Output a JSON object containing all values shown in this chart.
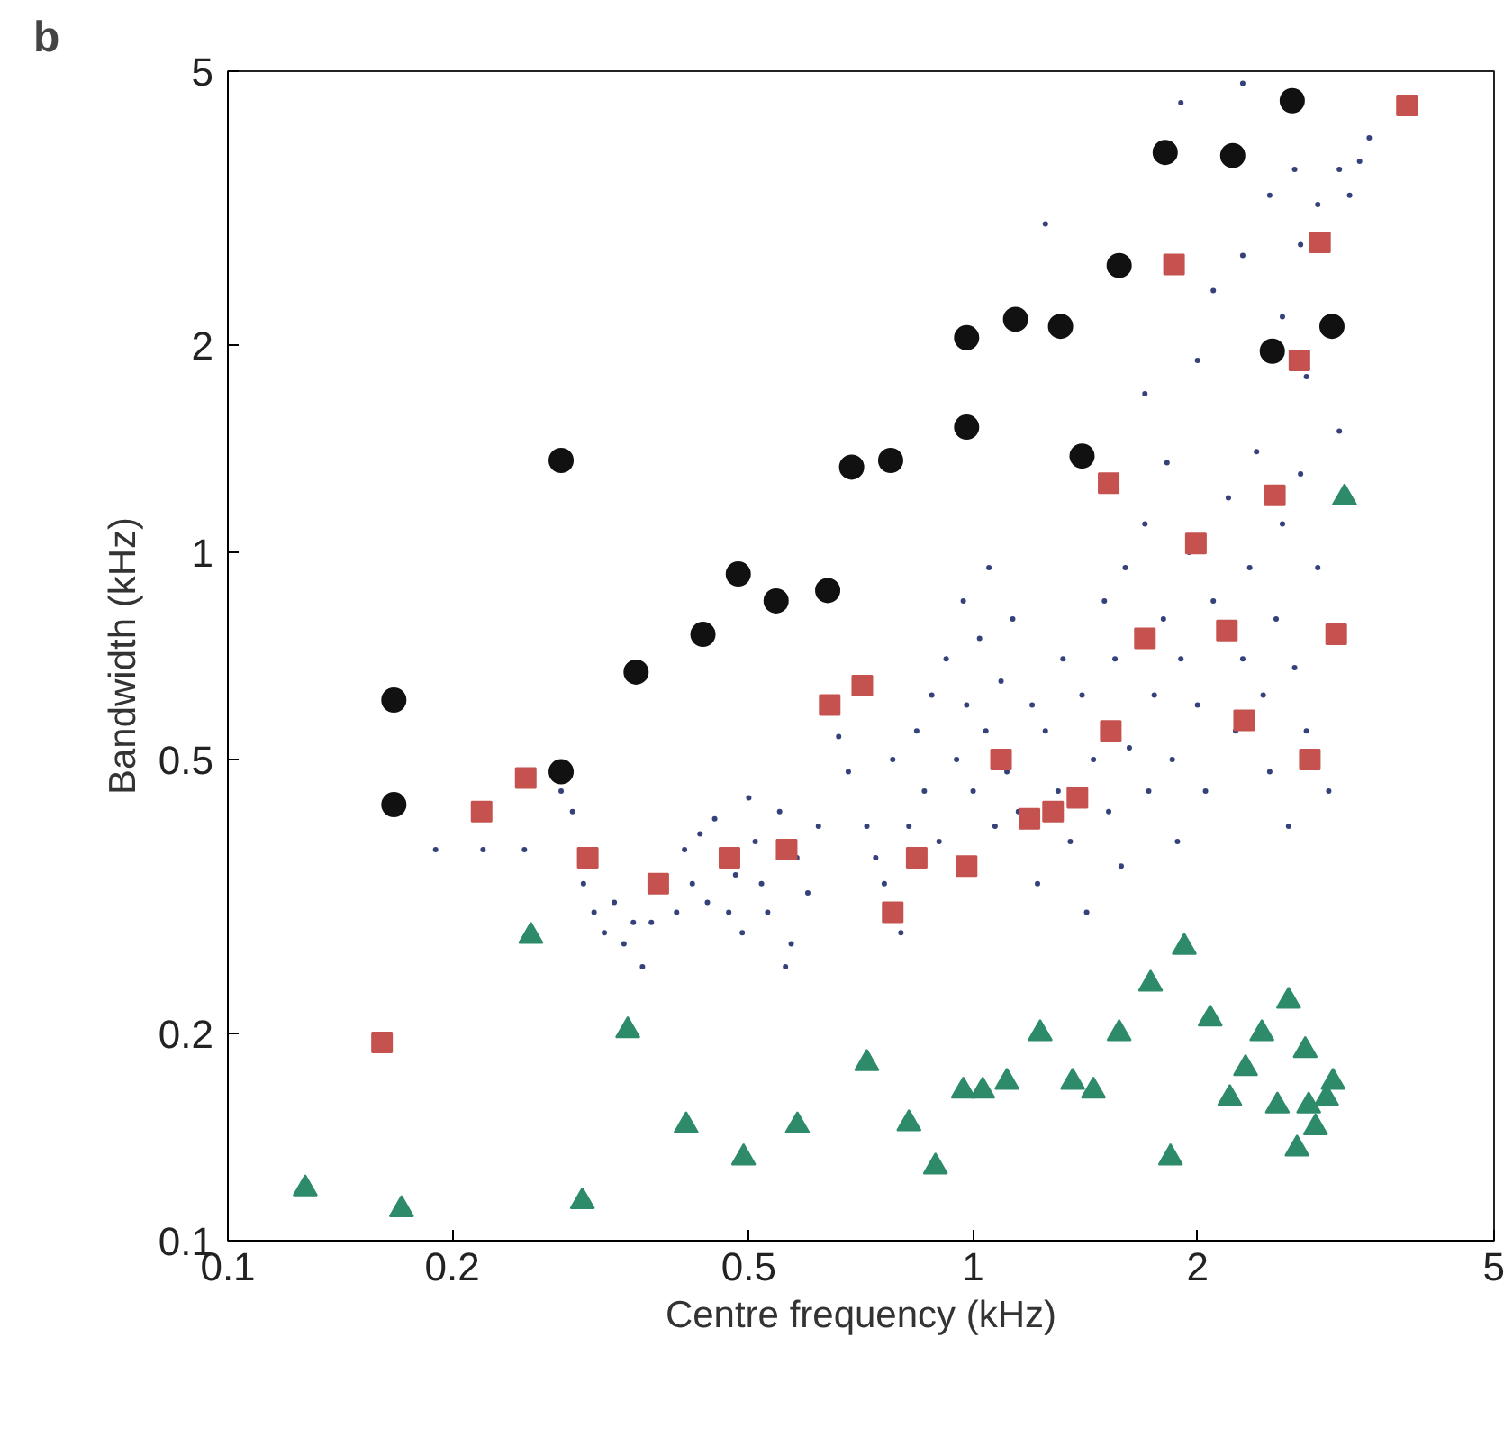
{
  "chart_data": {
    "type": "scatter",
    "title": "b",
    "xlabel": "Centre frequency (kHz)",
    "ylabel": "Bandwidth (kHz)",
    "log": "xy",
    "xlim": [
      0.1,
      5
    ],
    "ylim": [
      0.1,
      5
    ],
    "xticks": [
      0.1,
      0.2,
      0.5,
      1,
      2,
      5
    ],
    "yticks": [
      0.1,
      0.2,
      0.5,
      1,
      2,
      5
    ],
    "grid": false,
    "series": [
      {
        "color": "#34417a",
        "marker": "dot",
        "x": [
          0.19,
          0.22,
          0.25,
          0.28,
          0.29,
          0.3,
          0.31,
          0.32,
          0.33,
          0.34,
          0.35,
          0.36,
          0.37,
          0.4,
          0.41,
          0.42,
          0.43,
          0.44,
          0.45,
          0.47,
          0.48,
          0.49,
          0.5,
          0.51,
          0.52,
          0.53,
          0.55,
          0.57,
          0.58,
          0.6,
          0.62,
          0.56,
          0.66,
          0.68,
          0.72,
          0.74,
          0.76,
          0.78,
          0.8,
          0.82,
          0.84,
          0.86,
          0.88,
          0.9,
          0.92,
          0.95,
          0.97,
          0.98,
          1.0,
          1.02,
          1.04,
          1.05,
          1.07,
          1.09,
          1.11,
          1.13,
          1.15,
          1.2,
          1.22,
          1.25,
          1.3,
          1.32,
          1.35,
          1.4,
          1.42,
          1.45,
          1.5,
          1.52,
          1.55,
          1.58,
          1.6,
          1.62,
          1.7,
          1.72,
          1.75,
          1.8,
          1.82,
          1.85,
          1.88,
          1.9,
          1.95,
          2.0,
          2.05,
          2.1,
          2.2,
          2.25,
          2.3,
          2.35,
          2.4,
          2.45,
          2.5,
          2.55,
          2.6,
          2.65,
          2.7,
          2.75,
          2.8,
          2.9,
          3.0,
          3.1,
          1.25,
          1.7,
          2.0,
          2.1,
          2.3,
          2.5,
          2.6,
          2.7,
          2.75,
          3.1,
          3.2,
          3.3,
          2.8,
          3.4,
          2.3,
          1.9,
          2.9
        ],
        "values": [
          0.37,
          0.37,
          0.37,
          0.45,
          0.42,
          0.33,
          0.3,
          0.28,
          0.31,
          0.27,
          0.29,
          0.25,
          0.29,
          0.3,
          0.37,
          0.33,
          0.39,
          0.31,
          0.41,
          0.3,
          0.34,
          0.28,
          0.44,
          0.38,
          0.33,
          0.3,
          0.42,
          0.27,
          0.36,
          0.32,
          0.4,
          0.25,
          0.54,
          0.48,
          0.4,
          0.36,
          0.33,
          0.5,
          0.28,
          0.4,
          0.55,
          0.45,
          0.62,
          0.38,
          0.7,
          0.5,
          0.85,
          0.6,
          0.45,
          0.75,
          0.55,
          0.95,
          0.4,
          0.65,
          0.48,
          0.8,
          0.42,
          0.6,
          0.33,
          0.55,
          0.45,
          0.7,
          0.38,
          0.62,
          0.3,
          0.5,
          0.85,
          0.42,
          0.7,
          0.35,
          0.95,
          0.52,
          1.1,
          0.45,
          0.62,
          0.8,
          1.35,
          0.5,
          0.38,
          0.7,
          1.0,
          0.6,
          0.45,
          0.85,
          1.2,
          0.55,
          0.7,
          0.95,
          1.4,
          0.62,
          0.48,
          0.8,
          1.1,
          0.4,
          0.68,
          1.3,
          0.55,
          0.95,
          0.45,
          1.5,
          3.0,
          1.7,
          1.9,
          2.4,
          2.7,
          3.3,
          2.2,
          3.6,
          2.8,
          3.6,
          3.3,
          3.7,
          1.8,
          4.0,
          4.8,
          4.5,
          3.2
        ]
      },
      {
        "color": "#111111",
        "marker": "circle",
        "x": [
          0.28,
          0.167,
          0.167,
          0.28,
          0.353,
          0.434,
          0.484,
          0.544,
          0.638,
          0.687,
          0.775,
          0.98,
          0.98,
          1.14,
          1.31,
          1.4,
          1.57,
          1.81,
          2.23,
          2.68,
          2.52,
          3.03
        ],
        "values": [
          1.36,
          0.61,
          0.43,
          0.48,
          0.67,
          0.76,
          0.93,
          0.85,
          0.88,
          1.33,
          1.36,
          1.52,
          2.05,
          2.18,
          2.13,
          1.38,
          2.61,
          3.81,
          3.77,
          4.53,
          1.96,
          2.13
        ]
      },
      {
        "color": "#c5524f",
        "marker": "square",
        "x": [
          0.161,
          0.219,
          0.251,
          0.304,
          0.378,
          0.471,
          0.562,
          0.642,
          0.71,
          1.52,
          1.86,
          2.92,
          3.82,
          2.74,
          2.54,
          1.99,
          3.07,
          1.7,
          2.19,
          1.53,
          2.31,
          2.83,
          1.09,
          1.19,
          1.28,
          1.38,
          0.84,
          0.98,
          0.78
        ],
        "values": [
          0.194,
          0.42,
          0.47,
          0.36,
          0.33,
          0.36,
          0.37,
          0.6,
          0.64,
          1.26,
          2.62,
          2.82,
          4.46,
          1.9,
          1.21,
          1.03,
          0.76,
          0.75,
          0.77,
          0.55,
          0.57,
          0.5,
          0.5,
          0.41,
          0.42,
          0.44,
          0.36,
          0.35,
          0.3
        ]
      },
      {
        "color": "#2e8b6a",
        "marker": "triangle",
        "x": [
          0.127,
          0.171,
          0.299,
          0.255,
          0.344,
          0.412,
          0.492,
          0.581,
          0.72,
          0.82,
          0.89,
          0.97,
          1.03,
          1.11,
          1.23,
          1.36,
          1.45,
          1.57,
          1.73,
          1.92,
          1.84,
          2.08,
          2.44,
          2.65,
          2.32,
          2.79,
          2.21,
          2.56,
          2.82,
          3.04,
          2.98,
          2.88,
          2.72,
          3.15
        ],
        "values": [
          0.119,
          0.111,
          0.114,
          0.277,
          0.202,
          0.147,
          0.132,
          0.147,
          0.181,
          0.148,
          0.128,
          0.165,
          0.165,
          0.17,
          0.2,
          0.17,
          0.165,
          0.2,
          0.236,
          0.267,
          0.132,
          0.21,
          0.2,
          0.223,
          0.178,
          0.189,
          0.161,
          0.157,
          0.157,
          0.17,
          0.161,
          0.146,
          0.136,
          1.2
        ]
      }
    ]
  }
}
